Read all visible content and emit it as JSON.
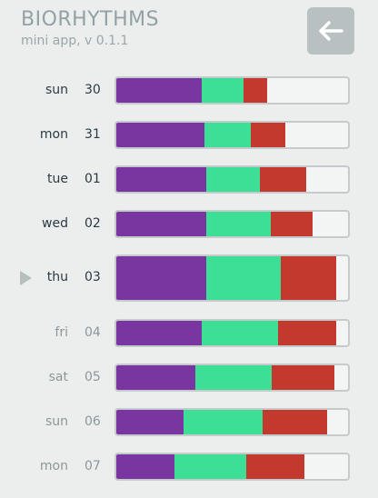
{
  "header": {
    "title": "BIORHYTHMS",
    "subtitle": "mini app, v 0.1.1",
    "back_icon": "arrow-left-icon"
  },
  "colors": {
    "physical": "#7a36a0",
    "emotional": "#3dde96",
    "intellectual": "#c4392e",
    "bar_bg": "#f3f4f4",
    "bar_border": "#c5cbcc"
  },
  "days": [
    {
      "day": "sun",
      "num": "30",
      "state": "past",
      "physical": 0.37,
      "emotional": 0.18,
      "intellectual": 0.1
    },
    {
      "day": "mon",
      "num": "31",
      "state": "past",
      "physical": 0.38,
      "emotional": 0.2,
      "intellectual": 0.15
    },
    {
      "day": "tue",
      "num": "01",
      "state": "past",
      "physical": 0.39,
      "emotional": 0.23,
      "intellectual": 0.2
    },
    {
      "day": "wed",
      "num": "02",
      "state": "past",
      "physical": 0.39,
      "emotional": 0.28,
      "intellectual": 0.18
    },
    {
      "day": "thu",
      "num": "03",
      "state": "current",
      "physical": 0.39,
      "emotional": 0.32,
      "intellectual": 0.24
    },
    {
      "day": "fri",
      "num": "04",
      "state": "future",
      "physical": 0.37,
      "emotional": 0.33,
      "intellectual": 0.25
    },
    {
      "day": "sat",
      "num": "05",
      "state": "future",
      "physical": 0.34,
      "emotional": 0.33,
      "intellectual": 0.27
    },
    {
      "day": "sun",
      "num": "06",
      "state": "future",
      "physical": 0.29,
      "emotional": 0.34,
      "intellectual": 0.28
    },
    {
      "day": "mon",
      "num": "07",
      "state": "future",
      "physical": 0.25,
      "emotional": 0.31,
      "intellectual": 0.25
    }
  ]
}
